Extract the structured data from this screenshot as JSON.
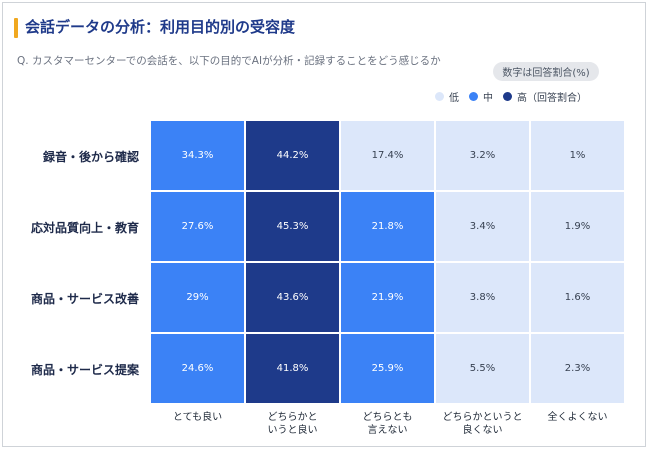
{
  "header": {
    "title": "会話データの分析：利用目的別の受容度",
    "question": "Q. カスタマーセンターでの会話を、以下の目的でAIが分析・記録することをどう感じるか",
    "unit_note": "数字は回答割合(%)"
  },
  "legend": {
    "items": [
      {
        "label": "低",
        "color": "#dce7fa"
      },
      {
        "label": "中",
        "color": "#3b82f6"
      },
      {
        "label": "高（回答割合）",
        "color": "#1e3a8a"
      }
    ]
  },
  "chart_data": {
    "type": "heatmap",
    "title": "会話データの分析：利用目的別の受容度",
    "rows": [
      "録音・後から確認",
      "応対品質向上・教育",
      "商品・サービス改善",
      "商品・サービス提案"
    ],
    "columns": [
      "とても良い",
      "どちらかと\nいうと良い",
      "どちらとも\n言えない",
      "どちらかというと\n良くない",
      "全くよくない"
    ],
    "values": [
      [
        34.3,
        44.2,
        17.4,
        3.2,
        1
      ],
      [
        27.6,
        45.3,
        21.8,
        3.4,
        1.9
      ],
      [
        29,
        43.6,
        21.9,
        3.8,
        1.6
      ],
      [
        24.6,
        41.8,
        25.9,
        5.5,
        2.3
      ]
    ],
    "value_labels": [
      [
        "34.3%",
        "44.2%",
        "17.4%",
        "3.2%",
        "1%"
      ],
      [
        "27.6%",
        "45.3%",
        "21.8%",
        "3.4%",
        "1.9%"
      ],
      [
        "29%",
        "43.6%",
        "21.9%",
        "3.8%",
        "1.6%"
      ],
      [
        "24.6%",
        "41.8%",
        "25.9%",
        "5.5%",
        "2.3%"
      ]
    ],
    "color_scale": {
      "low": "#dce7fa",
      "mid": "#3b82f6",
      "high": "#1e3a8a"
    }
  }
}
